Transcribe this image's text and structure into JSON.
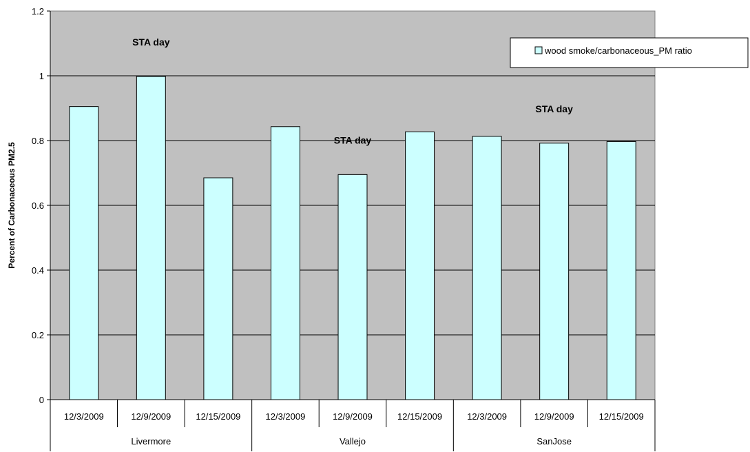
{
  "chart_data": {
    "type": "bar",
    "ylabel": "Percent of Carbonaceous PM2.5",
    "ylim": [
      0,
      1.2
    ],
    "yticks": [
      "0",
      "0.2",
      "0.4",
      "0.6",
      "0.8",
      "1",
      "1.2"
    ],
    "grid": true,
    "legend_position": "top-right",
    "groups": [
      {
        "name": "Livermore",
        "categories": [
          "12/3/2009",
          "12/9/2009",
          "12/15/2009"
        ]
      },
      {
        "name": "Vallejo",
        "categories": [
          "12/3/2009",
          "12/9/2009",
          "12/15/2009"
        ]
      },
      {
        "name": "SanJose",
        "categories": [
          "12/3/2009",
          "12/9/2009",
          "12/15/2009"
        ]
      }
    ],
    "series": [
      {
        "name": "wood smoke/carbonaceous_PM ratio",
        "values": [
          0.905,
          0.998,
          0.685,
          0.843,
          0.695,
          0.827,
          0.813,
          0.792,
          0.797
        ]
      }
    ],
    "annotations": [
      {
        "text": "STA day",
        "bar_index": 1
      },
      {
        "text": "STA day",
        "bar_index": 4
      },
      {
        "text": "STA day",
        "bar_index": 7
      }
    ],
    "colors": {
      "plot_background": "#c0c0c0",
      "bar_fill": "#ccffff",
      "bar_stroke": "#000000",
      "gridline": "#000000"
    }
  }
}
